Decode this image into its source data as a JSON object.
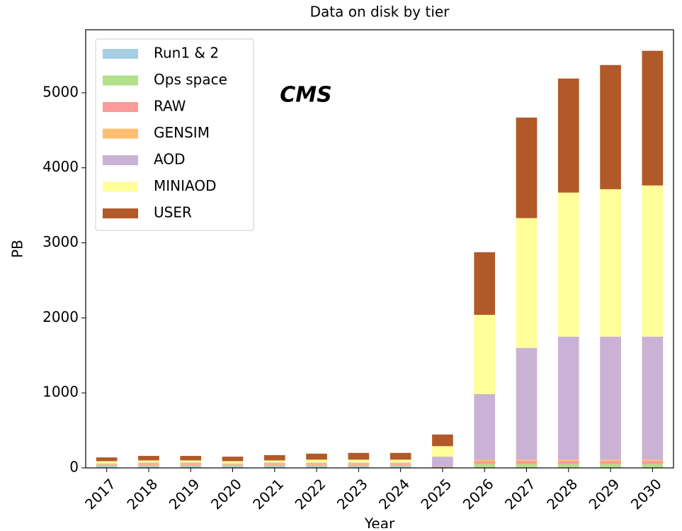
{
  "chart_data": {
    "type": "stacked_bar",
    "title": "Data on disk by tier",
    "ylabel": "PB",
    "xlabel": "Year",
    "annotation": "CMS",
    "categories": [
      "2017",
      "2018",
      "2019",
      "2020",
      "2021",
      "2022",
      "2023",
      "2024",
      "2025",
      "2026",
      "2027",
      "2028",
      "2029",
      "2030"
    ],
    "series": [
      {
        "name": "Run1 & 2",
        "color": "#a6cee3",
        "values": [
          20,
          20,
          20,
          20,
          20,
          20,
          20,
          20,
          0,
          0,
          0,
          0,
          0,
          0
        ]
      },
      {
        "name": "Ops space",
        "color": "#b2df8a",
        "values": [
          10,
          10,
          10,
          10,
          10,
          10,
          10,
          10,
          10,
          50,
          50,
          50,
          50,
          50
        ]
      },
      {
        "name": "RAW",
        "color": "#fb9a99",
        "values": [
          10,
          15,
          15,
          10,
          15,
          15,
          15,
          15,
          10,
          40,
          40,
          40,
          40,
          40
        ]
      },
      {
        "name": "GENSIM",
        "color": "#fdbf6f",
        "values": [
          10,
          10,
          10,
          10,
          10,
          10,
          10,
          10,
          0,
          15,
          20,
          20,
          20,
          20
        ]
      },
      {
        "name": "AOD",
        "color": "#cab2d6",
        "values": [
          10,
          15,
          15,
          10,
          15,
          15,
          15,
          15,
          130,
          880,
          1490,
          1640,
          1640,
          1640
        ]
      },
      {
        "name": "MINIAOD",
        "color": "#ffff99",
        "values": [
          30,
          30,
          30,
          30,
          30,
          40,
          40,
          40,
          140,
          1055,
          1730,
          1920,
          1965,
          2015
        ]
      },
      {
        "name": "USER",
        "color": "#b15928",
        "values": [
          50,
          60,
          60,
          60,
          70,
          80,
          90,
          90,
          155,
          835,
          1340,
          1520,
          1655,
          1795
        ]
      }
    ],
    "ylim": [
      0,
      5840
    ],
    "yticks": [
      0,
      1000,
      2000,
      3000,
      4000,
      5000
    ],
    "legend": "upper left"
  }
}
